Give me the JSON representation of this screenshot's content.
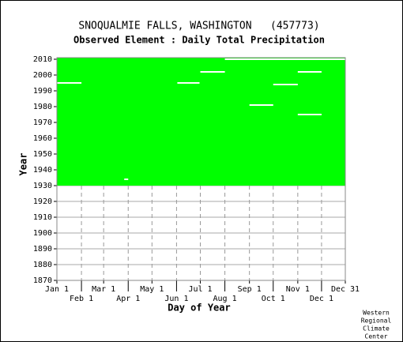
{
  "chart_data": {
    "type": "availability",
    "title": "SNOQUALMIE FALLS, WASHINGTON   (457773)",
    "subtitle": "Observed Element : Daily Total Precipitation",
    "x_label": "Day of Year",
    "y_label": "Year",
    "credit": [
      "Western",
      "Regional",
      "Climate",
      "Center"
    ],
    "color": "#00ff00",
    "coverage": [
      1930,
      2010
    ],
    "gaps": [
      {
        "year": 2010,
        "from": 213,
        "to": 365
      },
      {
        "year": 2002,
        "from": 182,
        "to": 213
      },
      {
        "year": 2002,
        "from": 305,
        "to": 335
      },
      {
        "year": 1995,
        "from": 1,
        "to": 32
      },
      {
        "year": 1995,
        "from": 153,
        "to": 181
      },
      {
        "year": 1994,
        "from": 274,
        "to": 305
      },
      {
        "year": 1981,
        "from": 244,
        "to": 274
      },
      {
        "year": 1975,
        "from": 305,
        "to": 335
      },
      {
        "year": 1934,
        "from": 86,
        "to": 91
      }
    ],
    "xlim": [
      1,
      365
    ],
    "xticks": [
      {
        "value": 1,
        "label": "Jan 1"
      },
      {
        "value": 32,
        "label": "Feb 1"
      },
      {
        "value": 60,
        "label": "Mar 1"
      },
      {
        "value": 91,
        "label": "Apr 1"
      },
      {
        "value": 121,
        "label": "May 1"
      },
      {
        "value": 152,
        "label": "Jun 1"
      },
      {
        "value": 182,
        "label": "Jul 1"
      },
      {
        "value": 213,
        "label": "Aug 1"
      },
      {
        "value": 244,
        "label": "Sep 1"
      },
      {
        "value": 274,
        "label": "Oct 1"
      },
      {
        "value": 305,
        "label": "Nov 1"
      },
      {
        "value": 335,
        "label": "Dec 1"
      },
      {
        "value": 365,
        "label": "Dec 31"
      }
    ],
    "ylim": [
      1870,
      2010
    ],
    "yticks": [
      1870,
      1880,
      1890,
      1900,
      1910,
      1920,
      1930,
      1940,
      1950,
      1960,
      1970,
      1980,
      1990,
      2000,
      2010
    ],
    "grid": true
  }
}
